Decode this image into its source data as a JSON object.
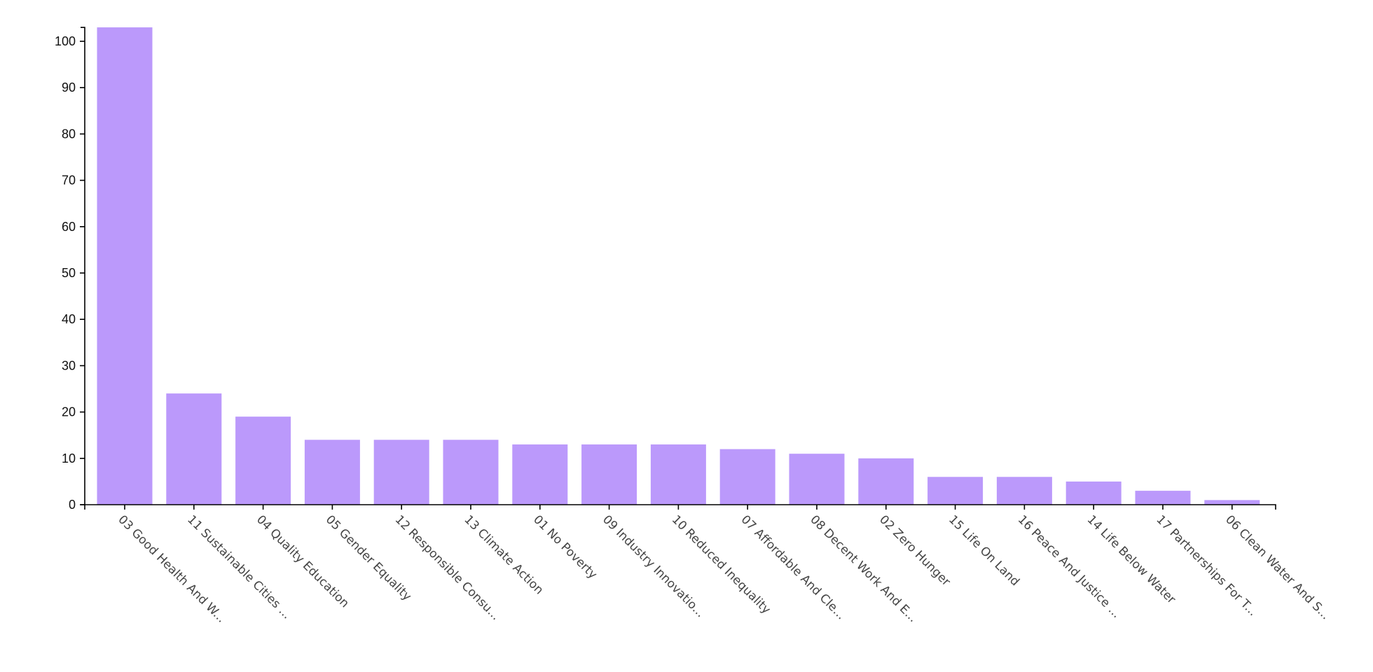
{
  "chart_data": {
    "type": "bar",
    "title": "",
    "xlabel": "",
    "ylabel": "",
    "categories": [
      "03 Good Health And W...",
      "11 Sustainable Cities ...",
      "04 Quality Education",
      "05 Gender Equality",
      "12 Responsible Consu...",
      "13 Climate Action",
      "01 No Poverty",
      "09 Industry Innovatio...",
      "10 Reduced Inequality",
      "07 Affordable And Cle...",
      "08 Decent Work And E...",
      "02 Zero Hunger",
      "15 Life On Land",
      "16 Peace And Justice ...",
      "14 Life Below Water",
      "17 Partnerships For T...",
      "06 Clean Water And S..."
    ],
    "values": [
      103,
      24,
      19,
      14,
      14,
      14,
      13,
      13,
      13,
      12,
      11,
      10,
      6,
      6,
      5,
      3,
      1
    ],
    "ylim": [
      0,
      103
    ],
    "yticks": [
      0,
      10,
      20,
      30,
      40,
      50,
      60,
      70,
      80,
      90,
      100
    ],
    "bar_color": "#bb99fb",
    "grid": false,
    "legend": "none"
  }
}
